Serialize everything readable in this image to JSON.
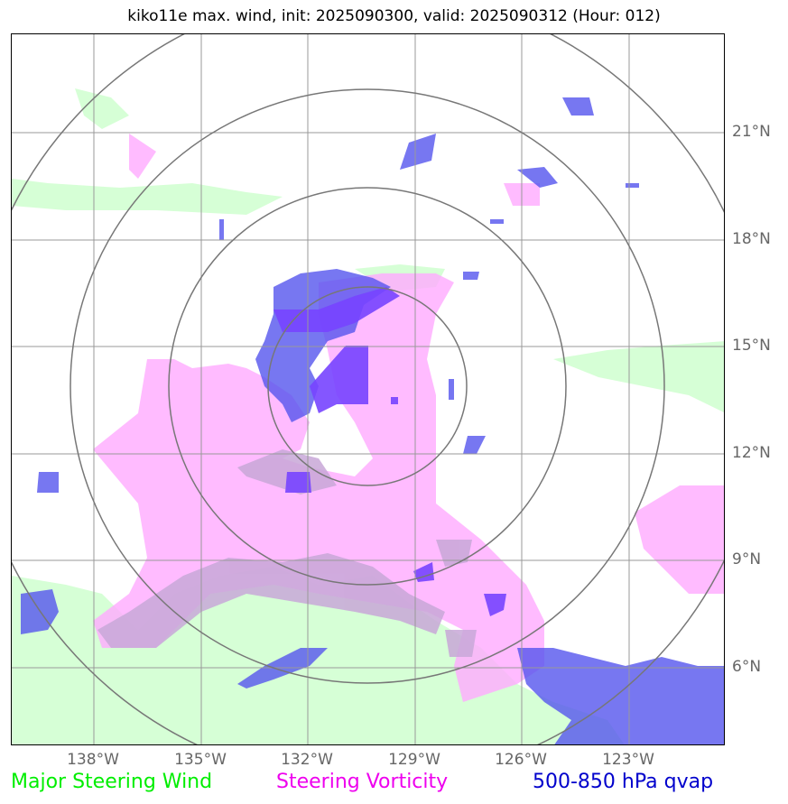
{
  "title": "kiko11e max. wind, init: 2025090300, valid: 2025090312 (Hour: 012)",
  "axes": {
    "lon_ticks": [
      "138°W",
      "135°W",
      "132°W",
      "129°W",
      "126°W",
      "123°W"
    ],
    "lat_ticks": [
      "21°N",
      "18°N",
      "15°N",
      "12°N",
      "9°N",
      "6°N"
    ]
  },
  "legend": {
    "wind": {
      "label": "Major Steering Wind",
      "color": "#00ff00"
    },
    "vorticity": {
      "label": "Steering Vorticity",
      "color": "#ff00ff"
    },
    "qvap": {
      "label": "500-850 hPa qvap",
      "color": "#0000cc"
    }
  },
  "colors": {
    "wind_fill": "#ccffcc",
    "vorticity_fill": "#ffaaff",
    "qvap_fill": "#5555ee",
    "overlap_fill": "#7744ff",
    "grid": "#999999",
    "rings": "#777777"
  },
  "chart_data": {
    "type": "map",
    "region": {
      "lon_range": [
        "140°W",
        "120°W"
      ],
      "lat_range": [
        "4°N",
        "24°N"
      ]
    },
    "storm_center": {
      "lon": -130.3,
      "lat": 13.9
    },
    "range_rings_count": 4,
    "grid": true
  }
}
